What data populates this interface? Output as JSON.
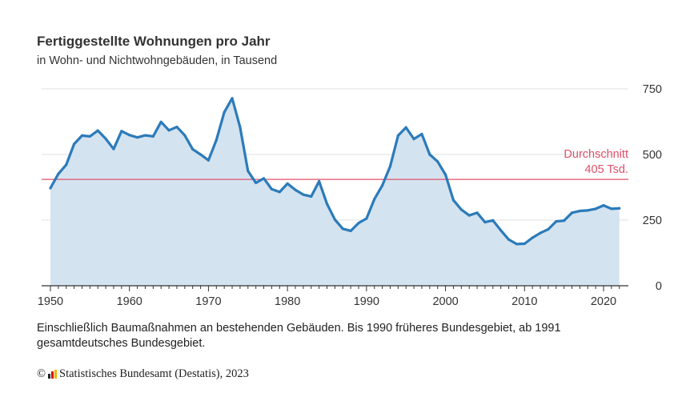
{
  "chart_data": {
    "type": "area",
    "title": "Fertiggestellte Wohnungen pro Jahr",
    "subtitle": "in Wohn- und Nichtwohngebäuden, in Tausend",
    "xlabel": "",
    "ylabel": "",
    "xlim": [
      1950,
      2022
    ],
    "ylim": [
      0,
      750
    ],
    "x_ticks": [
      "1950",
      "1960",
      "1970",
      "1980",
      "1990",
      "2000",
      "2010",
      "2020"
    ],
    "y_ticks": [
      "0",
      "250",
      "500",
      "750"
    ],
    "y_axis_position": "right",
    "grid": true,
    "x": [
      1950,
      1951,
      1952,
      1953,
      1954,
      1955,
      1956,
      1957,
      1958,
      1959,
      1960,
      1961,
      1962,
      1963,
      1964,
      1965,
      1966,
      1967,
      1968,
      1969,
      1970,
      1971,
      1972,
      1973,
      1974,
      1975,
      1976,
      1977,
      1978,
      1979,
      1980,
      1981,
      1982,
      1983,
      1984,
      1985,
      1986,
      1987,
      1988,
      1989,
      1990,
      1991,
      1992,
      1993,
      1994,
      1995,
      1996,
      1997,
      1998,
      1999,
      2000,
      2001,
      2002,
      2003,
      2004,
      2005,
      2006,
      2007,
      2008,
      2009,
      2010,
      2011,
      2012,
      2013,
      2014,
      2015,
      2016,
      2017,
      2018,
      2019,
      2020,
      2021,
      2022
    ],
    "values": [
      372,
      426,
      461,
      540,
      572,
      569,
      591,
      560,
      521,
      589,
      574,
      565,
      573,
      569,
      624,
      592,
      605,
      573,
      520,
      500,
      478,
      555,
      661,
      714,
      604,
      437,
      392,
      409,
      368,
      357,
      389,
      365,
      347,
      340,
      398,
      312,
      252,
      217,
      209,
      239,
      256,
      330,
      382,
      455,
      572,
      603,
      559,
      578,
      500,
      473,
      423,
      326,
      290,
      268,
      278,
      242,
      249,
      211,
      176,
      159,
      160,
      183,
      201,
      215,
      245,
      248,
      278,
      285,
      287,
      293,
      306,
      293,
      295
    ],
    "line_color": "#2b7bba",
    "fill_color": "#d4e3f0",
    "reference_line": {
      "value": 405,
      "label_line1": "Durchschnitt",
      "label_line2": "405 Tsd.",
      "color": "#e0506a"
    },
    "note": "Einschließlich Baumaßnahmen an bestehenden Gebäuden. Bis 1990 früheres Bundesgebiet, ab 1991 gesamtdeutsches Bundesgebiet.",
    "source": "Statistisches Bundesamt (Destatis), 2023",
    "copyright_symbol": "©"
  }
}
